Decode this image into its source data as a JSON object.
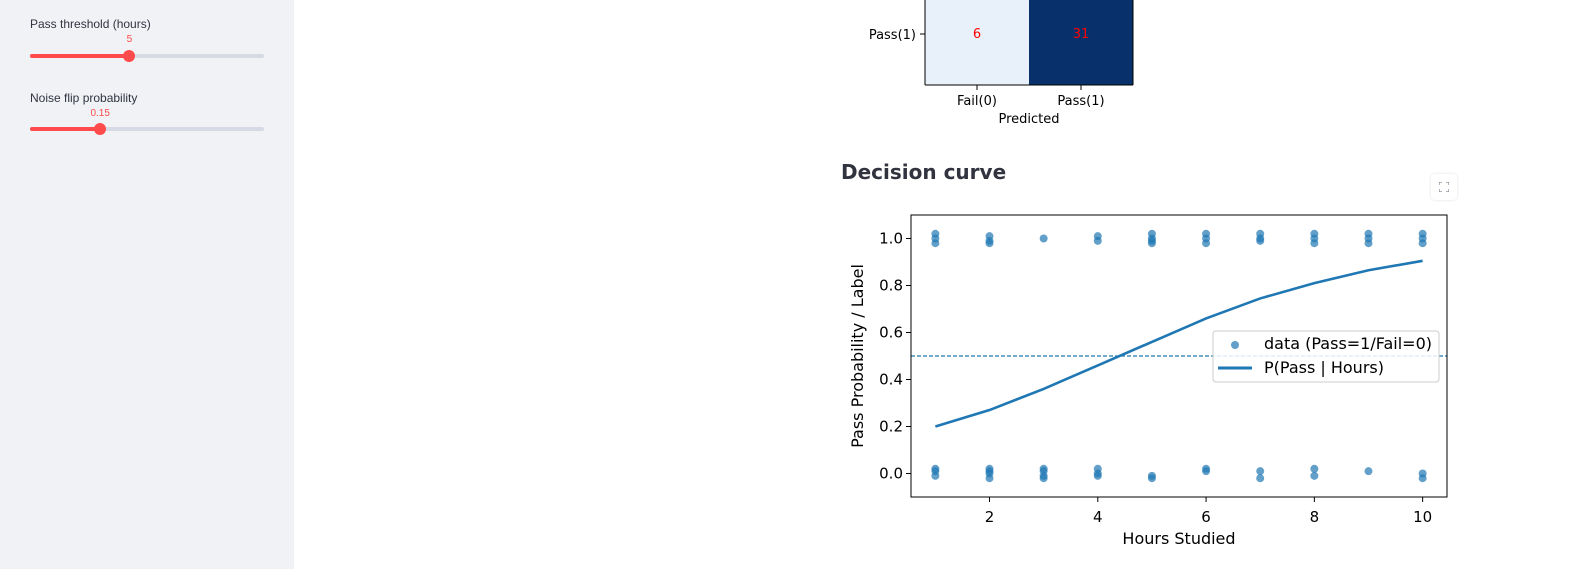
{
  "sidebar": {
    "sliders": [
      {
        "label": "Pass threshold (hours)",
        "value": "5",
        "fraction": 0.425
      },
      {
        "label": "Noise flip probability",
        "value": "0.15",
        "fraction": 0.3
      }
    ]
  },
  "confusion_matrix": {
    "row_label": "Pass(1)",
    "cells": [
      "6",
      "31"
    ],
    "col_labels": [
      "Fail(0)",
      "Pass(1)"
    ],
    "xlabel": "Predicted",
    "colors": {
      "light": "#e8f0f9",
      "dark": "#08306b",
      "value_text": "#ff0000"
    }
  },
  "decision_curve": {
    "title": "Decision curve",
    "fullscreen_icon": "expand-icon"
  },
  "chart_data": {
    "type": "scatter",
    "xlabel": "Hours Studied",
    "ylabel": "Pass Probability / Label",
    "xlim": [
      0.55,
      10.45
    ],
    "ylim": [
      -0.1,
      1.1
    ],
    "xticks": [
      "2",
      "4",
      "6",
      "8",
      "10"
    ],
    "yticks": [
      "0.0",
      "0.2",
      "0.4",
      "0.6",
      "0.8",
      "1.0"
    ],
    "legend_position": "center-right",
    "threshold_line": 0.5,
    "series": [
      {
        "name": "data (Pass=1/Fail=0)",
        "kind": "scatter",
        "color": "#1f77b4",
        "points": [
          [
            1,
            1.02
          ],
          [
            1,
            1.0
          ],
          [
            1,
            0.98
          ],
          [
            1,
            0.01
          ],
          [
            1,
            -0.01
          ],
          [
            1,
            0.02
          ],
          [
            2,
            1.01
          ],
          [
            2,
            0.99
          ],
          [
            2,
            0.98
          ],
          [
            2,
            0.02
          ],
          [
            2,
            0.0
          ],
          [
            2,
            -0.02
          ],
          [
            2,
            0.01
          ],
          [
            3,
            1.0
          ],
          [
            3,
            0.02
          ],
          [
            3,
            -0.01
          ],
          [
            3,
            0.01
          ],
          [
            3,
            -0.02
          ],
          [
            4,
            1.01
          ],
          [
            4,
            0.99
          ],
          [
            4,
            0.02
          ],
          [
            4,
            0.0
          ],
          [
            4,
            -0.01
          ],
          [
            5,
            1.02
          ],
          [
            5,
            1.0
          ],
          [
            5,
            0.99
          ],
          [
            5,
            0.98
          ],
          [
            5,
            -0.01
          ],
          [
            5,
            -0.02
          ],
          [
            6,
            1.02
          ],
          [
            6,
            1.0
          ],
          [
            6,
            0.98
          ],
          [
            6,
            0.02
          ],
          [
            6,
            0.01
          ],
          [
            7,
            1.02
          ],
          [
            7,
            1.0
          ],
          [
            7,
            0.99
          ],
          [
            7,
            0.01
          ],
          [
            7,
            -0.02
          ],
          [
            8,
            1.02
          ],
          [
            8,
            1.0
          ],
          [
            8,
            0.98
          ],
          [
            8,
            0.02
          ],
          [
            8,
            -0.01
          ],
          [
            9,
            1.02
          ],
          [
            9,
            1.0
          ],
          [
            9,
            0.98
          ],
          [
            9,
            0.01
          ],
          [
            10,
            1.02
          ],
          [
            10,
            1.0
          ],
          [
            10,
            0.98
          ],
          [
            10,
            0.0
          ],
          [
            10,
            -0.02
          ]
        ]
      },
      {
        "name": "P(Pass | Hours)",
        "kind": "line",
        "color": "#1f77b4",
        "x": [
          1,
          2,
          3,
          4,
          5,
          6,
          7,
          8,
          9,
          10
        ],
        "y": [
          0.2,
          0.27,
          0.36,
          0.46,
          0.56,
          0.66,
          0.745,
          0.81,
          0.865,
          0.905
        ]
      }
    ]
  }
}
